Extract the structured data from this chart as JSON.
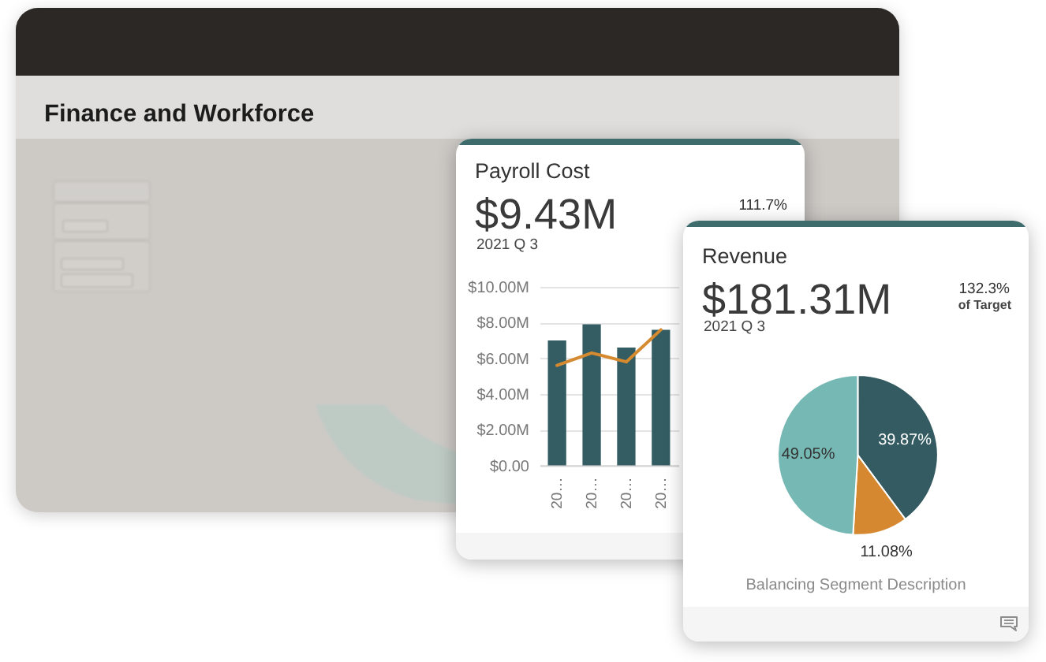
{
  "chart_data": [
    {
      "type": "other",
      "title": "Finance and Workforce"
    },
    {
      "type": "bar",
      "title": "Payroll Cost",
      "subtitle": "$9.43M",
      "annotations": [
        "2021 Q 3",
        "111.7%"
      ],
      "categories": [
        "20…",
        "20…",
        "20…",
        "20…"
      ],
      "series": [
        {
          "type": "bar",
          "color": "#335c63",
          "values": [
            7.0,
            7.9,
            6.6,
            7.6
          ]
        },
        {
          "type": "line",
          "color": "#d68a30",
          "values": [
            5.6,
            6.3,
            5.8,
            7.6
          ]
        }
      ],
      "ylim": [
        0,
        10
      ],
      "yticks": [
        {
          "value": 0,
          "label": "$0.00"
        },
        {
          "value": 2,
          "label": "$2.00M"
        },
        {
          "value": 4,
          "label": "$4.00M"
        },
        {
          "value": 6,
          "label": "$6.00M"
        },
        {
          "value": 8,
          "label": "$8.00M"
        },
        {
          "value": 10,
          "label": "$10.00M"
        }
      ],
      "grid": "y"
    },
    {
      "type": "pie",
      "title": "Revenue",
      "subtitle": "$181.31M",
      "annotations": [
        "2021 Q 3",
        "132.3%",
        "of Target"
      ],
      "categories": [
        null,
        null,
        null
      ],
      "values": [
        39.87,
        11.08,
        49.05
      ],
      "colors": [
        "#335b61",
        "#d5882f",
        "#76b8b3"
      ],
      "value_labels": [
        "39.87%",
        "11.08%",
        "49.05%"
      ],
      "xlabel": "Balancing Segment Description"
    }
  ]
}
